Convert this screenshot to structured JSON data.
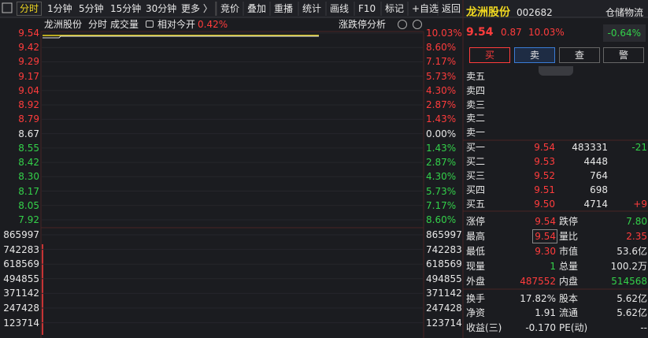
{
  "toolbar": {
    "period_tabs": [
      "分时",
      "1分钟",
      "5分钟",
      "15分钟",
      "30分钟",
      "更多 〉"
    ],
    "buttons": [
      "竞价",
      "叠加",
      "重播",
      "统计",
      "画线",
      "F10",
      "标记",
      "+自选",
      "返回"
    ]
  },
  "chart": {
    "stock_name": "龙洲股份",
    "mode": "分时",
    "indicator": "成交量",
    "relative_label": "相对今开",
    "relative_value": "0.42%",
    "analysis": "涨跌停分析",
    "price_ticks": [
      "9.54",
      "9.42",
      "9.29",
      "9.17",
      "9.04",
      "8.92",
      "8.79",
      "8.67",
      "8.55",
      "8.42",
      "8.30",
      "8.17",
      "8.05",
      "7.92"
    ],
    "pct_ticks": [
      "10.03%",
      "8.60%",
      "7.17%",
      "5.73%",
      "4.30%",
      "2.87%",
      "1.43%",
      "0.00%",
      "1.43%",
      "2.87%",
      "4.30%",
      "5.73%",
      "7.17%",
      "8.60%"
    ],
    "volume_ticks": [
      "865997",
      "742283",
      "618569",
      "494855",
      "371142",
      "247428",
      "123714"
    ]
  },
  "quote": {
    "name": "龙洲股份",
    "code": "002682",
    "industry": "仓储物流",
    "industry_change": "-0.64%",
    "price": "9.54",
    "change": "0.87",
    "change_pct": "10.03%",
    "actions": [
      "买",
      "卖",
      "查",
      "警"
    ]
  },
  "order_book": {
    "asks": [
      "卖五",
      "卖四",
      "卖三",
      "卖二",
      "卖一"
    ],
    "bids": [
      {
        "label": "买一",
        "price": "9.54",
        "volume": "483331",
        "change": "-21"
      },
      {
        "label": "买二",
        "price": "9.53",
        "volume": "4448",
        "change": null
      },
      {
        "label": "买三",
        "price": "9.52",
        "volume": "764",
        "change": null
      },
      {
        "label": "买四",
        "price": "9.51",
        "volume": "698",
        "change": null
      },
      {
        "label": "买五",
        "price": "9.50",
        "volume": "4714",
        "change": "+9"
      }
    ]
  },
  "stats": [
    [
      "涨停",
      "9.54",
      "跌停",
      "7.80"
    ],
    [
      "最高",
      "9.54",
      "量比",
      "2.35"
    ],
    [
      "最低",
      "9.30",
      "市值",
      "53.6亿"
    ],
    [
      "现量",
      "1",
      "总量",
      "100.2万"
    ],
    [
      "外盘",
      "487552",
      "内盘",
      "514568"
    ],
    [
      "换手",
      "17.82%",
      "股本",
      "5.62亿"
    ],
    [
      "净资",
      "1.91",
      "流通",
      "5.62亿"
    ],
    [
      "收益(三)",
      "-0.170",
      "PE(动)",
      "--"
    ]
  ]
}
